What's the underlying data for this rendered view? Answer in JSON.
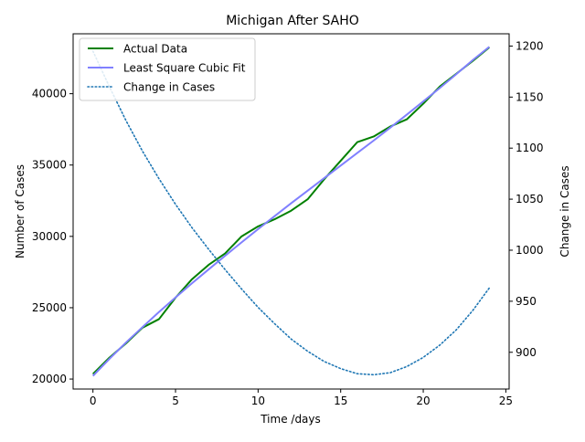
{
  "chart_data": {
    "type": "line",
    "title": "Michigan After SAHO",
    "xlabel": "Time /days",
    "ylabel": "Number of Cases",
    "y2label": "Change in Cases",
    "xlim": [
      -1.2,
      25.2
    ],
    "ylim": [
      19300,
      44200
    ],
    "y2lim": [
      864,
      1212
    ],
    "xticks": [
      0,
      5,
      10,
      15,
      20,
      25
    ],
    "yticks": [
      20000,
      25000,
      30000,
      35000,
      40000
    ],
    "y2ticks": [
      900,
      950,
      1000,
      1050,
      1100,
      1150,
      1200
    ],
    "grid": false,
    "legend_position": "top-left",
    "x": [
      0,
      1,
      2,
      3,
      4,
      5,
      6,
      7,
      8,
      9,
      10,
      11,
      12,
      13,
      14,
      15,
      16,
      17,
      18,
      19,
      20,
      21,
      22,
      23,
      24
    ],
    "series": [
      {
        "name": "Actual Data",
        "axis": "left",
        "color": "#008000",
        "style": "solid",
        "values": [
          20350,
          21500,
          22500,
          23600,
          24200,
          25700,
          27000,
          28000,
          28800,
          30000,
          30700,
          31200,
          31800,
          32600,
          34000,
          35300,
          36600,
          37000,
          37700,
          38200,
          39300,
          40500,
          41400,
          42300,
          43250
        ]
      },
      {
        "name": "Least Square Cubic Fit",
        "axis": "left",
        "color": "#8080ff",
        "style": "solid",
        "values": [
          20220,
          21420,
          22560,
          23640,
          24700,
          25720,
          26720,
          27680,
          28640,
          29580,
          30510,
          31420,
          32320,
          33200,
          34080,
          34960,
          35840,
          36720,
          37620,
          38530,
          39460,
          40400,
          41370,
          42360,
          43290
        ]
      },
      {
        "name": "Change in Cases",
        "axis": "right",
        "color": "#1f77b4",
        "style": "dotted",
        "values": [
          1195,
          1160,
          1127,
          1097,
          1070,
          1045,
          1022,
          1001,
          981,
          962,
          944,
          928,
          913,
          901,
          891,
          884,
          879,
          878,
          880,
          886,
          895,
          907,
          922,
          941,
          963
        ]
      }
    ]
  }
}
